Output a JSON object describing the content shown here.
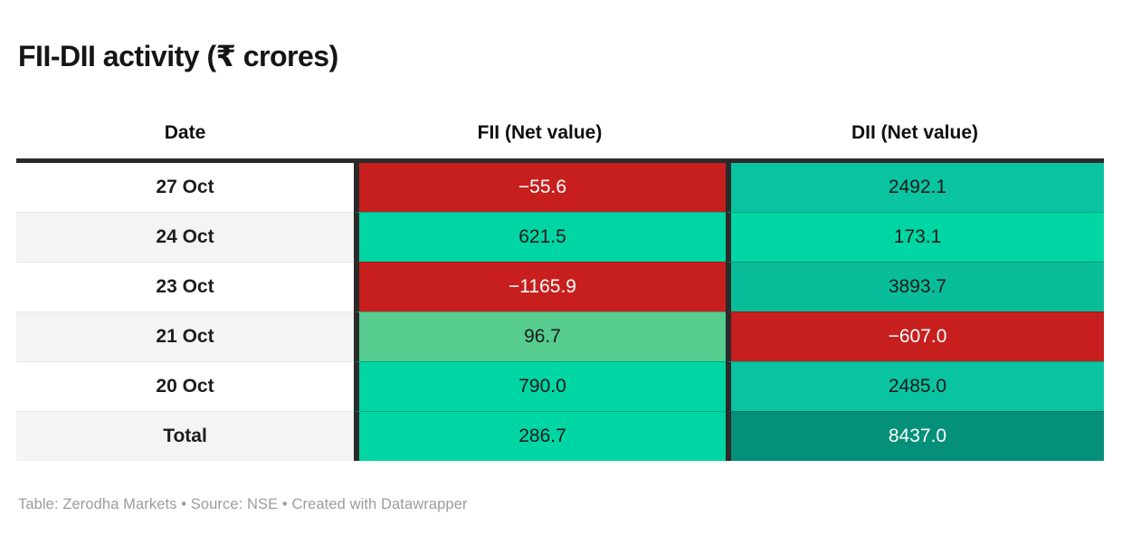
{
  "title": "FII-DII activity (₹ crores)",
  "table": {
    "columns": [
      "Date",
      "FII (Net value)",
      "DII (Net value)"
    ],
    "rows": [
      {
        "date": "27 Oct",
        "fii": "−55.6",
        "fii_bg": "#c71f1e",
        "fii_fg": "#ffffff",
        "dii": "2492.1",
        "dii_bg": "#0ac3a1",
        "dii_fg": "#1a1a1a"
      },
      {
        "date": "24 Oct",
        "fii": "621.5",
        "fii_bg": "#00d5a4",
        "fii_fg": "#1a1a1a",
        "dii": "173.1",
        "dii_bg": "#00d5a4",
        "dii_fg": "#1a1a1a"
      },
      {
        "date": "23 Oct",
        "fii": "−1165.9",
        "fii_bg": "#c71f1e",
        "fii_fg": "#ffffff",
        "dii": "3893.7",
        "dii_bg": "#09bd9b",
        "dii_fg": "#1a1a1a"
      },
      {
        "date": "21 Oct",
        "fii": "96.7",
        "fii_bg": "#56cc8f",
        "fii_fg": "#1a1a1a",
        "dii": "−607.0",
        "dii_bg": "#c71f1e",
        "dii_fg": "#ffffff"
      },
      {
        "date": "20 Oct",
        "fii": "790.0",
        "fii_bg": "#00d5a4",
        "fii_fg": "#1a1a1a",
        "dii": "2485.0",
        "dii_bg": "#0ac3a1",
        "dii_fg": "#1a1a1a"
      },
      {
        "date": "Total",
        "fii": "286.7",
        "fii_bg": "#00d5a4",
        "fii_fg": "#1a1a1a",
        "dii": "8437.0",
        "dii_bg": "#05907a",
        "dii_fg": "#ffffff"
      }
    ]
  },
  "footer": "Table: Zerodha Markets • Source: NSE • Created with Datawrapper",
  "colors": {
    "negative_red": "#c71f1e",
    "positive_green": "#00d5a4",
    "light_green": "#56cc8f",
    "teal_green": "#0ac3a1",
    "dark_teal": "#05907a",
    "header_border": "#2a2a2a",
    "stripe_gray": "#f4f4f4",
    "footer_gray": "#9c9c9c"
  },
  "chart_data": {
    "type": "table",
    "title": "FII-DII activity (₹ crores)",
    "categories": [
      "27 Oct",
      "24 Oct",
      "23 Oct",
      "21 Oct",
      "20 Oct",
      "Total"
    ],
    "series": [
      {
        "name": "FII (Net value)",
        "values": [
          -55.6,
          621.5,
          -1165.9,
          96.7,
          790.0,
          286.7
        ]
      },
      {
        "name": "DII (Net value)",
        "values": [
          2492.1,
          173.1,
          3893.7,
          -607.0,
          2485.0,
          8437.0
        ]
      }
    ],
    "layout_hints": {
      "cell_coloring": "diverging heatmap: red for negative, light-to-dark green for increasing positive",
      "last_row_is_total": true
    }
  }
}
